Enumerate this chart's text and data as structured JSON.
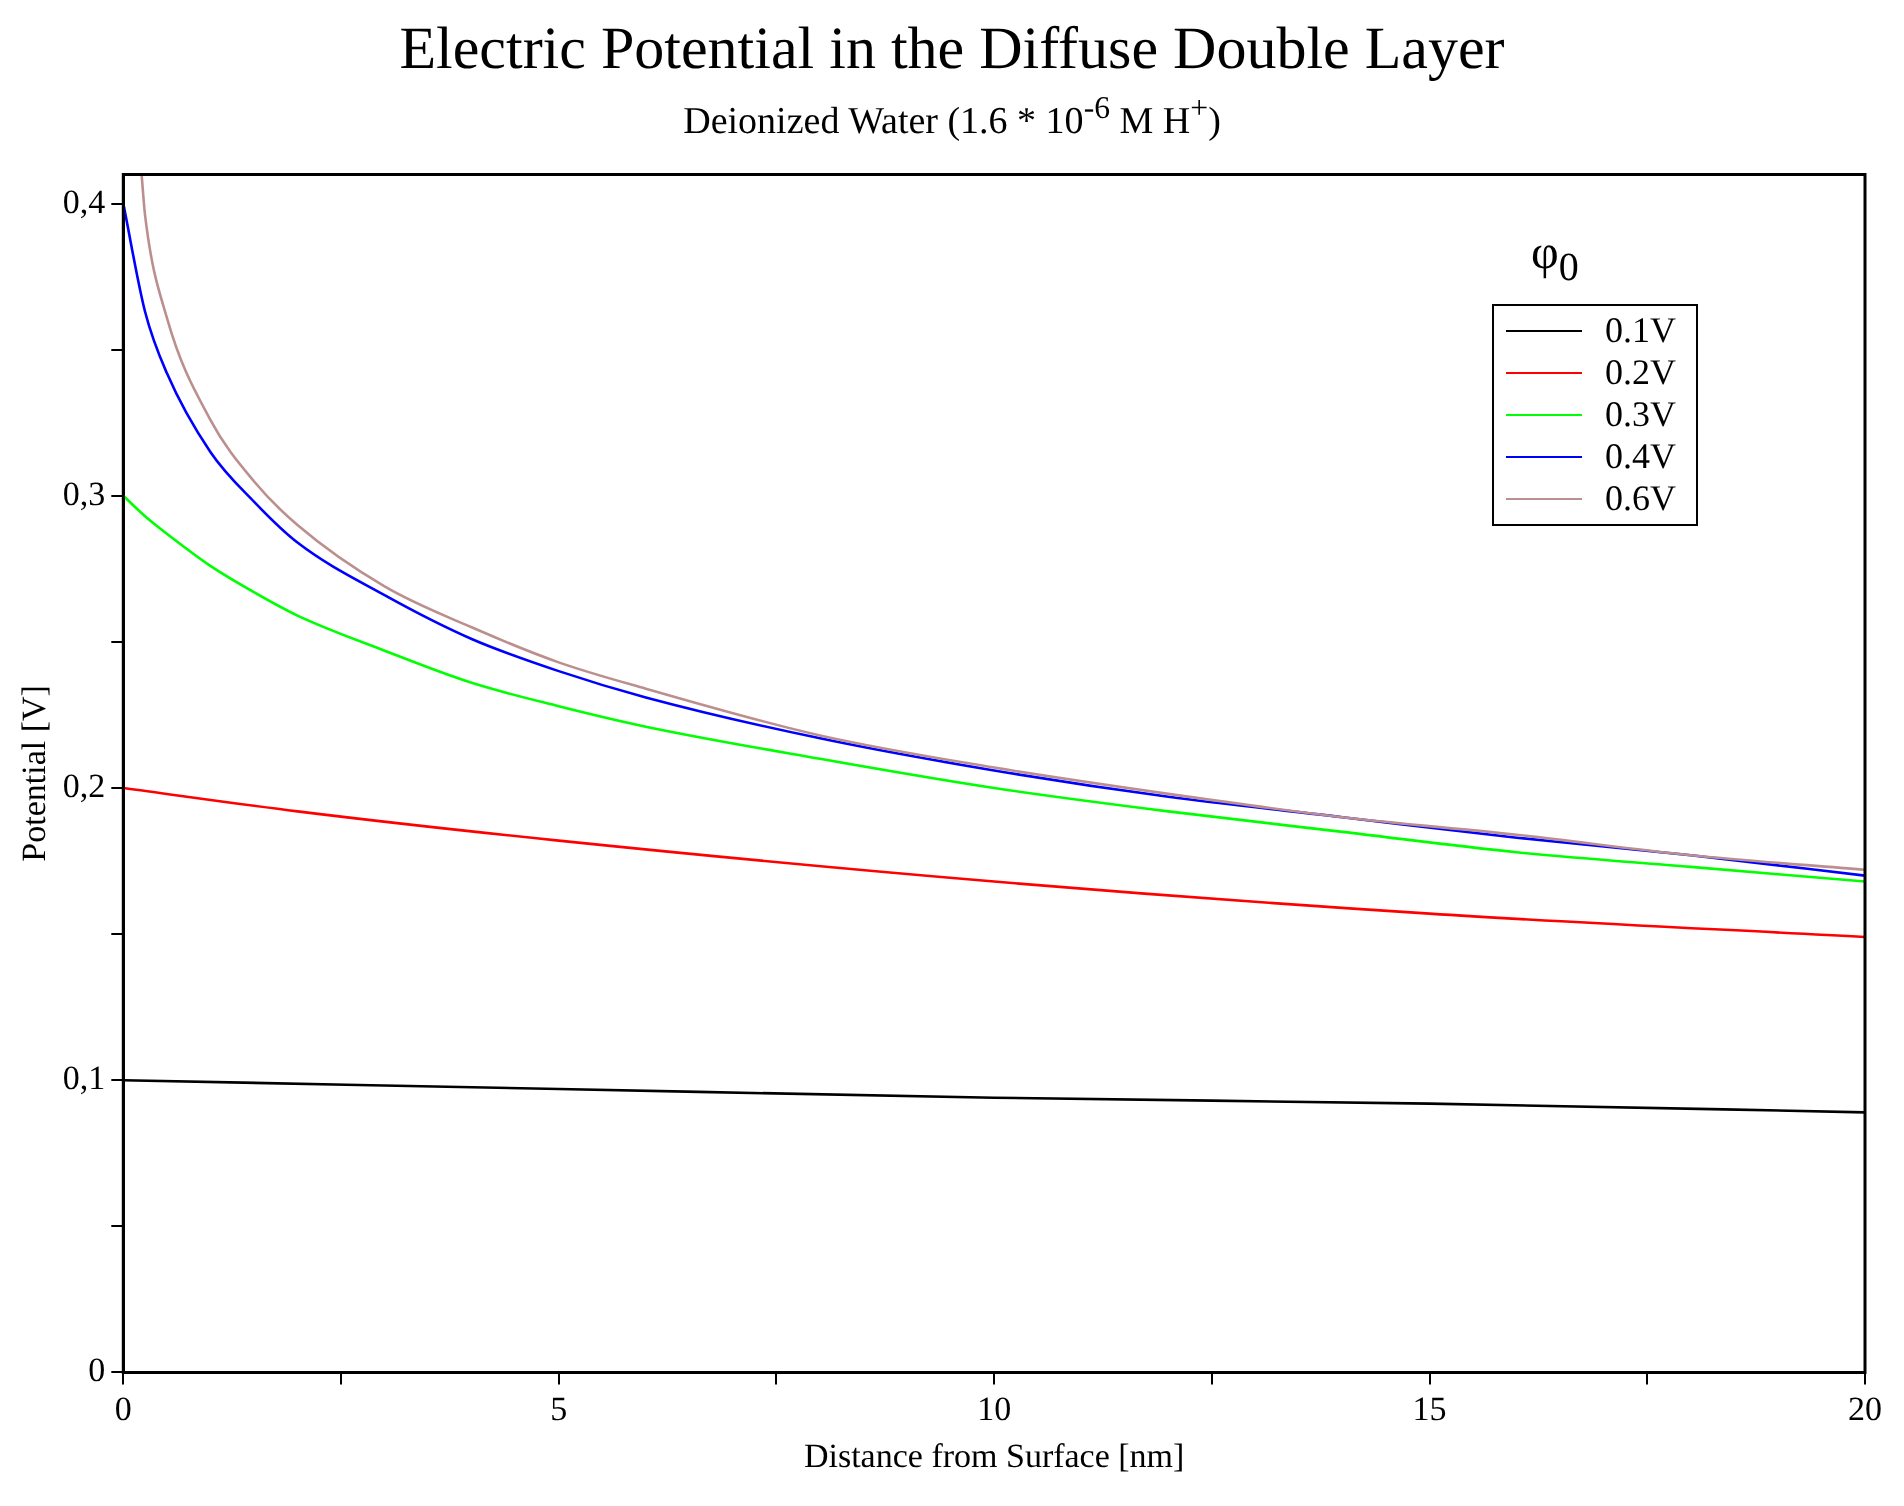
{
  "chart_data": {
    "type": "line",
    "title": "Electric Potential in the Diffuse Double Layer",
    "subtitle": "Deionized Water (1.6 * 10$^{-6}$ M  H$^{+}$)",
    "xlabel": "Distance from Surface [nm]",
    "ylabel": "Potential [V]",
    "legend_title": "φ$_{0}$",
    "legend": "top right",
    "grid": false,
    "marker": "none",
    "line_style": "solid",
    "xlim": [
      0,
      20
    ],
    "ylim": [
      0,
      0.41
    ],
    "xticks": [
      0,
      {
        "value": 2.5,
        "label": null
      },
      5,
      {
        "value": 7.5,
        "label": null
      },
      10,
      {
        "value": 12.5,
        "label": null
      },
      15,
      {
        "value": 17.5,
        "label": null
      },
      20
    ],
    "yticks": [
      0,
      {
        "value": 0.05,
        "label": null
      },
      {
        "value": 0.1,
        "label": "0,1"
      },
      {
        "value": 0.15,
        "label": null
      },
      {
        "value": 0.2,
        "label": "0,2"
      },
      {
        "value": 0.25,
        "label": null
      },
      {
        "value": 0.3,
        "label": "0,3"
      },
      {
        "value": 0.35,
        "label": null
      },
      {
        "value": 0.4,
        "label": "0,4"
      }
    ],
    "series": [
      {
        "name": "0.1V",
        "color": "#000000",
        "x": [
          0,
          5,
          10,
          15,
          20
        ],
        "values": [
          0.1,
          0.097,
          0.094,
          0.092,
          0.089
        ]
      },
      {
        "name": "0.2V",
        "color": "#ff0000",
        "x": [
          0,
          2,
          5,
          10,
          15,
          20
        ],
        "values": [
          0.2,
          0.192,
          0.182,
          0.168,
          0.157,
          0.149
        ]
      },
      {
        "name": "0.3V",
        "color": "#00ff00",
        "x": [
          0,
          0.25,
          0.5,
          1,
          1.5,
          2,
          3,
          4,
          5,
          6,
          8,
          10,
          12,
          14,
          16,
          18,
          20
        ],
        "values": [
          0.3,
          0.293,
          0.287,
          0.276,
          0.267,
          0.259,
          0.247,
          0.236,
          0.228,
          0.221,
          0.21,
          0.2,
          0.192,
          0.185,
          0.178,
          0.173,
          0.168
        ]
      },
      {
        "name": "0.4V",
        "color": "#0000ff",
        "x": [
          0,
          0.25,
          0.5,
          1,
          1.5,
          2,
          3,
          4,
          5,
          6,
          8,
          10,
          12,
          14,
          16,
          18,
          20
        ],
        "values": [
          0.4,
          0.363,
          0.342,
          0.315,
          0.298,
          0.284,
          0.266,
          0.251,
          0.24,
          0.231,
          0.217,
          0.206,
          0.197,
          0.19,
          0.183,
          0.177,
          0.17
        ]
      },
      {
        "name": "0.6V",
        "color": "#bc8f8f",
        "x": [
          0.21,
          0.25,
          0.5,
          1,
          1.5,
          2,
          3,
          4,
          5,
          6,
          8,
          10,
          12,
          14,
          16,
          18,
          20
        ],
        "values": [
          0.41,
          0.396,
          0.361,
          0.326,
          0.305,
          0.29,
          0.269,
          0.255,
          0.243,
          0.234,
          0.218,
          0.207,
          0.198,
          0.19,
          0.184,
          0.177,
          0.172
        ]
      }
    ]
  }
}
